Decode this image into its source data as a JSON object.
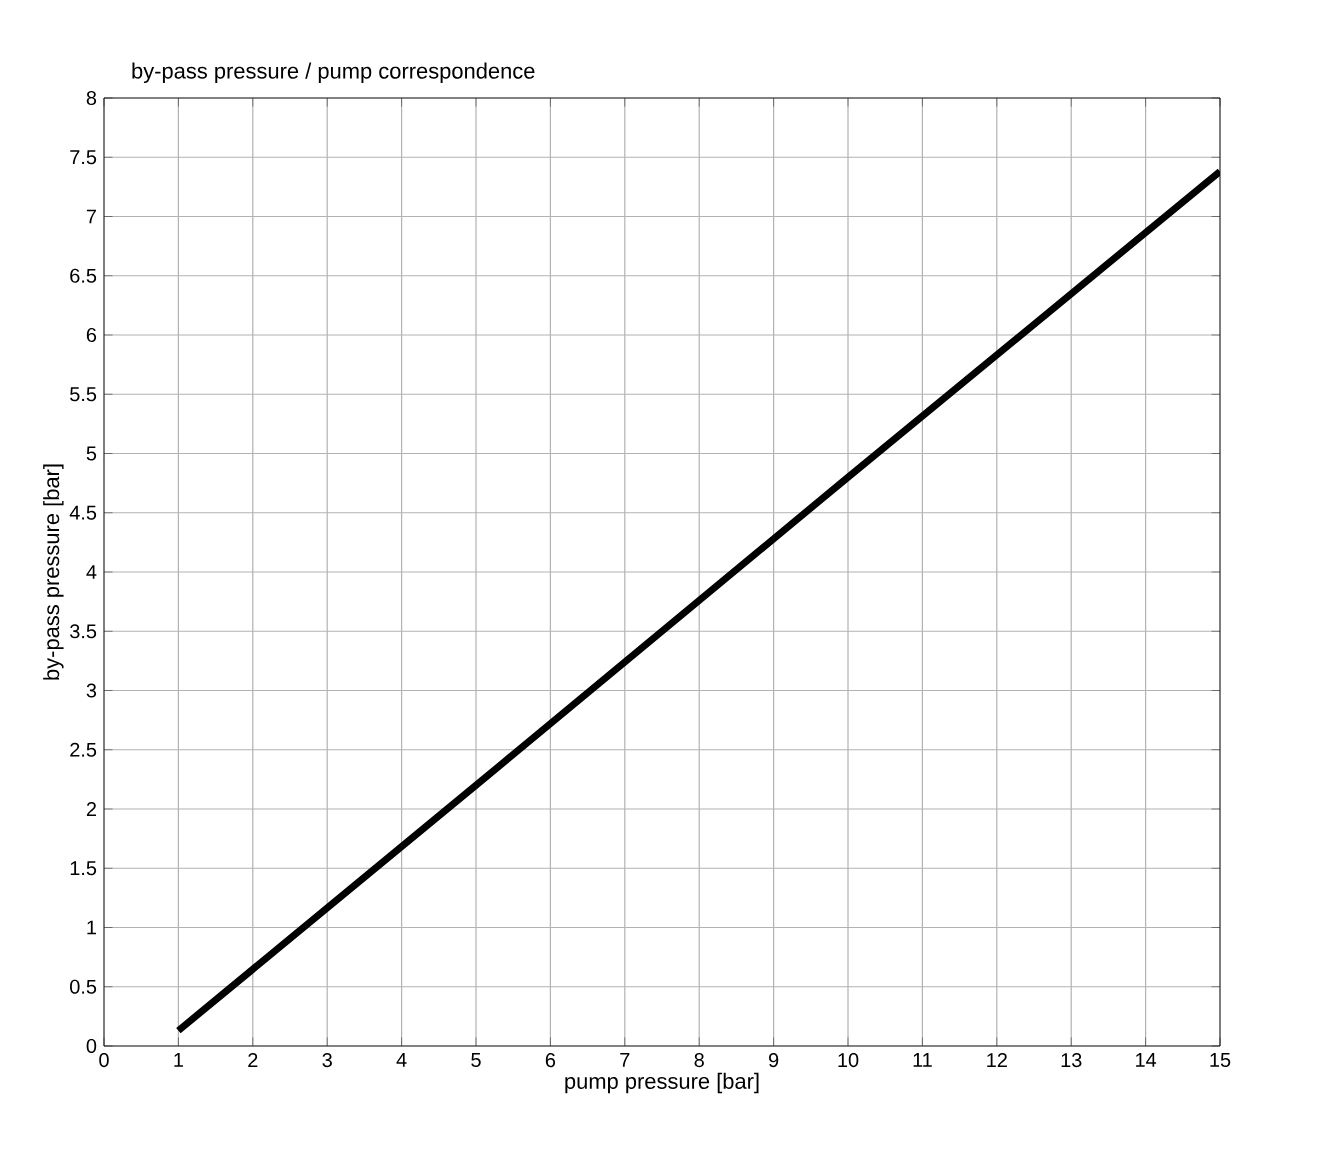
{
  "chart_data": {
    "type": "line",
    "title": "by-pass pressure / pump correspondence",
    "xlabel": "pump pressure [bar]",
    "ylabel": "by-pass pressure [bar]",
    "x": [
      1,
      5,
      10,
      15
    ],
    "series": [
      {
        "color": "#000000",
        "values": [
          0.13,
          2.2,
          4.8,
          7.38
        ]
      }
    ],
    "xlim": [
      0,
      15
    ],
    "xticks": [
      0,
      1,
      2,
      3,
      4,
      5,
      6,
      7,
      8,
      9,
      10,
      11,
      12,
      13,
      14,
      15
    ],
    "ylim": [
      0,
      8
    ],
    "yticks": [
      0,
      0.5,
      1,
      1.5,
      2,
      2.5,
      3,
      3.5,
      4,
      4.5,
      5,
      5.5,
      6,
      6.5,
      7,
      7.5,
      8
    ],
    "grid": true,
    "marker": "none",
    "line_style": "solid"
  }
}
